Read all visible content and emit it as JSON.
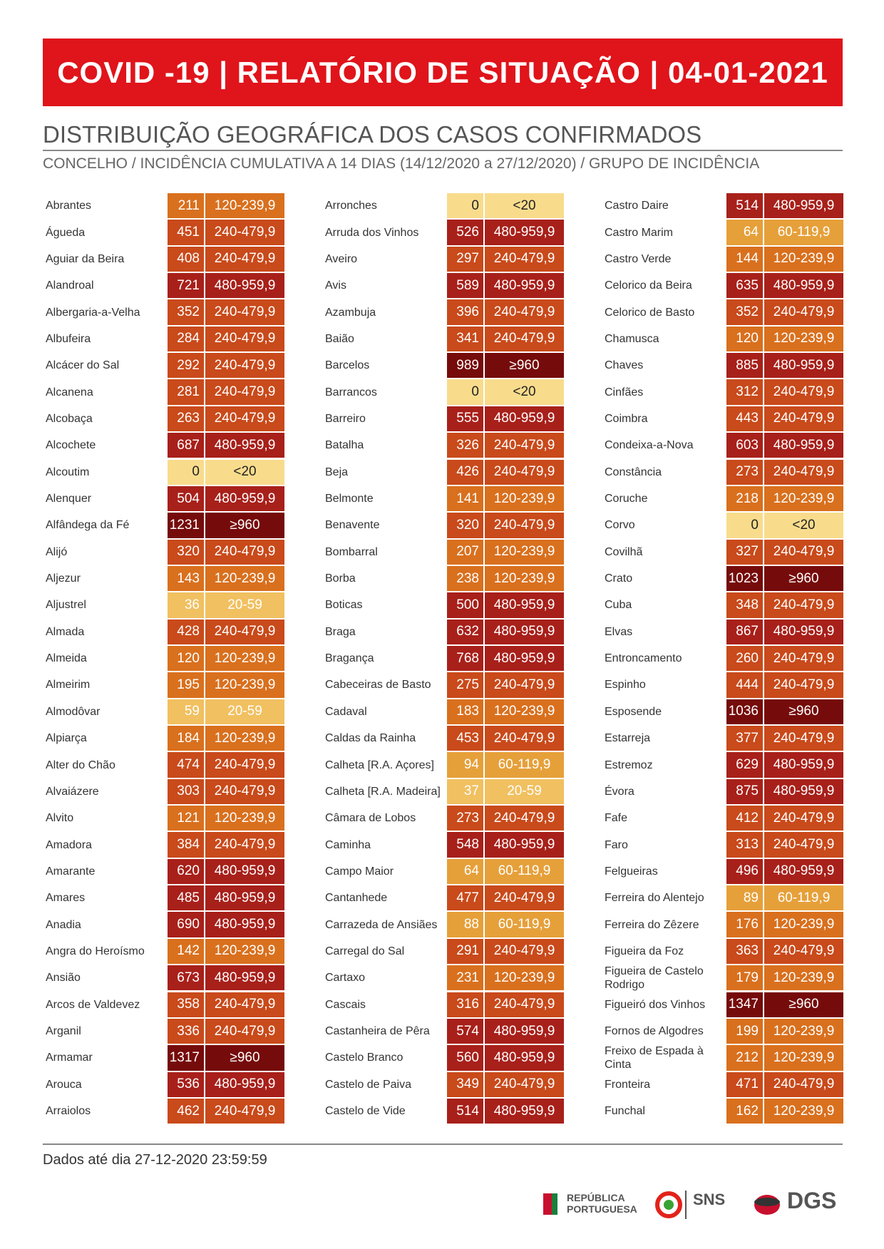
{
  "header": {
    "title": "COVID -19 | RELATÓRIO DE SITUAÇÃO | 04-01-2021"
  },
  "section": {
    "title": "DISTRIBUIÇÃO GEOGRÁFICA DOS CASOS CONFIRMADOS",
    "subtitle": "CONCELHO / INCIDÊNCIA CUMULATIVA A 14 DIAS (14/12/2020 a 27/12/2020) / GRUPO DE INCIDÊNCIA"
  },
  "table": {
    "columns": [
      {
        "rows": [
          [
            "Abrantes",
            211,
            "120-239,9",
            "#d9701e"
          ],
          [
            "Águeda",
            451,
            "240-479,9",
            "#c94a1b"
          ],
          [
            "Aguiar da Beira",
            408,
            "240-479,9",
            "#c94a1b"
          ],
          [
            "Alandroal",
            721,
            "480-959,9",
            "#a8201a"
          ],
          [
            "Albergaria-a-Velha",
            352,
            "240-479,9",
            "#c94a1b"
          ],
          [
            "Albufeira",
            284,
            "240-479,9",
            "#c94a1b"
          ],
          [
            "Alcácer do Sal",
            292,
            "240-479,9",
            "#c94a1b"
          ],
          [
            "Alcanena",
            281,
            "240-479,9",
            "#c94a1b"
          ],
          [
            "Alcobaça",
            263,
            "240-479,9",
            "#c94a1b"
          ],
          [
            "Alcochete",
            687,
            "480-959,9",
            "#a8201a"
          ],
          [
            "Alcoutim",
            0,
            "<20",
            "#f8dc8c"
          ],
          [
            "Alenquer",
            504,
            "480-959,9",
            "#a8201a"
          ],
          [
            "Alfândega da Fé",
            1231,
            "≥960",
            "#760b0b"
          ],
          [
            "Alijó",
            320,
            "240-479,9",
            "#c94a1b"
          ],
          [
            "Aljezur",
            143,
            "120-239,9",
            "#d9701e"
          ],
          [
            "Aljustrel",
            36,
            "20-59",
            "#f1c060"
          ],
          [
            "Almada",
            428,
            "240-479,9",
            "#c94a1b"
          ],
          [
            "Almeida",
            120,
            "120-239,9",
            "#d9701e"
          ],
          [
            "Almeirim",
            195,
            "120-239,9",
            "#d9701e"
          ],
          [
            "Almodôvar",
            59,
            "20-59",
            "#f1c060"
          ],
          [
            "Alpiarça",
            184,
            "120-239,9",
            "#d9701e"
          ],
          [
            "Alter do Chão",
            474,
            "240-479,9",
            "#c94a1b"
          ],
          [
            "Alvaiázere",
            303,
            "240-479,9",
            "#c94a1b"
          ],
          [
            "Alvito",
            121,
            "120-239,9",
            "#d9701e"
          ],
          [
            "Amadora",
            384,
            "240-479,9",
            "#c94a1b"
          ],
          [
            "Amarante",
            620,
            "480-959,9",
            "#a8201a"
          ],
          [
            "Amares",
            485,
            "480-959,9",
            "#a8201a"
          ],
          [
            "Anadia",
            690,
            "480-959,9",
            "#a8201a"
          ],
          [
            "Angra do Heroísmo",
            142,
            "120-239,9",
            "#d9701e"
          ],
          [
            "Ansião",
            673,
            "480-959,9",
            "#a8201a"
          ],
          [
            "Arcos de Valdevez",
            358,
            "240-479,9",
            "#c94a1b"
          ],
          [
            "Arganil",
            336,
            "240-479,9",
            "#c94a1b"
          ],
          [
            "Armamar",
            1317,
            "≥960",
            "#760b0b"
          ],
          [
            "Arouca",
            536,
            "480-959,9",
            "#a8201a"
          ],
          [
            "Arraiolos",
            462,
            "240-479,9",
            "#c94a1b"
          ]
        ]
      },
      {
        "rows": [
          [
            "Arronches",
            0,
            "<20",
            "#f8dc8c"
          ],
          [
            "Arruda dos Vinhos",
            526,
            "480-959,9",
            "#a8201a"
          ],
          [
            "Aveiro",
            297,
            "240-479,9",
            "#c94a1b"
          ],
          [
            "Avis",
            589,
            "480-959,9",
            "#a8201a"
          ],
          [
            "Azambuja",
            396,
            "240-479,9",
            "#c94a1b"
          ],
          [
            "Baião",
            341,
            "240-479,9",
            "#c94a1b"
          ],
          [
            "Barcelos",
            989,
            "≥960",
            "#760b0b"
          ],
          [
            "Barrancos",
            0,
            "<20",
            "#f8dc8c"
          ],
          [
            "Barreiro",
            555,
            "480-959,9",
            "#a8201a"
          ],
          [
            "Batalha",
            326,
            "240-479,9",
            "#c94a1b"
          ],
          [
            "Beja",
            426,
            "240-479,9",
            "#c94a1b"
          ],
          [
            "Belmonte",
            141,
            "120-239,9",
            "#d9701e"
          ],
          [
            "Benavente",
            320,
            "240-479,9",
            "#c94a1b"
          ],
          [
            "Bombarral",
            207,
            "120-239,9",
            "#d9701e"
          ],
          [
            "Borba",
            238,
            "120-239,9",
            "#d9701e"
          ],
          [
            "Boticas",
            500,
            "480-959,9",
            "#a8201a"
          ],
          [
            "Braga",
            632,
            "480-959,9",
            "#a8201a"
          ],
          [
            "Bragança",
            768,
            "480-959,9",
            "#a8201a"
          ],
          [
            "Cabeceiras de Basto",
            275,
            "240-479,9",
            "#c94a1b"
          ],
          [
            "Cadaval",
            183,
            "120-239,9",
            "#d9701e"
          ],
          [
            "Caldas da Rainha",
            453,
            "240-479,9",
            "#c94a1b"
          ],
          [
            "Calheta [R.A. Açores]",
            94,
            "60-119,9",
            "#e6a03a"
          ],
          [
            "Calheta [R.A. Madeira]",
            37,
            "20-59",
            "#f1c060"
          ],
          [
            "Câmara de Lobos",
            273,
            "240-479,9",
            "#c94a1b"
          ],
          [
            "Caminha",
            548,
            "480-959,9",
            "#a8201a"
          ],
          [
            "Campo Maior",
            64,
            "60-119,9",
            "#e6a03a"
          ],
          [
            "Cantanhede",
            477,
            "240-479,9",
            "#c94a1b"
          ],
          [
            "Carrazeda de Ansiães",
            88,
            "60-119,9",
            "#e6a03a"
          ],
          [
            "Carregal do Sal",
            291,
            "240-479,9",
            "#c94a1b"
          ],
          [
            "Cartaxo",
            231,
            "120-239,9",
            "#d9701e"
          ],
          [
            "Cascais",
            316,
            "240-479,9",
            "#c94a1b"
          ],
          [
            "Castanheira de Pêra",
            574,
            "480-959,9",
            "#a8201a"
          ],
          [
            "Castelo Branco",
            560,
            "480-959,9",
            "#a8201a"
          ],
          [
            "Castelo de Paiva",
            349,
            "240-479,9",
            "#c94a1b"
          ],
          [
            "Castelo de Vide",
            514,
            "480-959,9",
            "#a8201a"
          ]
        ]
      },
      {
        "rows": [
          [
            "Castro Daire",
            514,
            "480-959,9",
            "#a8201a"
          ],
          [
            "Castro Marim",
            64,
            "60-119,9",
            "#e6a03a"
          ],
          [
            "Castro Verde",
            144,
            "120-239,9",
            "#d9701e"
          ],
          [
            "Celorico da Beira",
            635,
            "480-959,9",
            "#a8201a"
          ],
          [
            "Celorico de Basto",
            352,
            "240-479,9",
            "#c94a1b"
          ],
          [
            "Chamusca",
            120,
            "120-239,9",
            "#d9701e"
          ],
          [
            "Chaves",
            885,
            "480-959,9",
            "#a8201a"
          ],
          [
            "Cinfães",
            312,
            "240-479,9",
            "#c94a1b"
          ],
          [
            "Coimbra",
            443,
            "240-479,9",
            "#c94a1b"
          ],
          [
            "Condeixa-a-Nova",
            603,
            "480-959,9",
            "#a8201a"
          ],
          [
            "Constância",
            273,
            "240-479,9",
            "#c94a1b"
          ],
          [
            "Coruche",
            218,
            "120-239,9",
            "#d9701e"
          ],
          [
            "Corvo",
            0,
            "<20",
            "#f8dc8c"
          ],
          [
            "Covilhã",
            327,
            "240-479,9",
            "#c94a1b"
          ],
          [
            "Crato",
            1023,
            "≥960",
            "#760b0b"
          ],
          [
            "Cuba",
            348,
            "240-479,9",
            "#c94a1b"
          ],
          [
            "Elvas",
            867,
            "480-959,9",
            "#a8201a"
          ],
          [
            "Entroncamento",
            260,
            "240-479,9",
            "#c94a1b"
          ],
          [
            "Espinho",
            444,
            "240-479,9",
            "#c94a1b"
          ],
          [
            "Esposende",
            1036,
            "≥960",
            "#760b0b"
          ],
          [
            "Estarreja",
            377,
            "240-479,9",
            "#c94a1b"
          ],
          [
            "Estremoz",
            629,
            "480-959,9",
            "#a8201a"
          ],
          [
            "Évora",
            875,
            "480-959,9",
            "#a8201a"
          ],
          [
            "Fafe",
            412,
            "240-479,9",
            "#c94a1b"
          ],
          [
            "Faro",
            313,
            "240-479,9",
            "#c94a1b"
          ],
          [
            "Felgueiras",
            496,
            "480-959,9",
            "#a8201a"
          ],
          [
            "Ferreira do Alentejo",
            89,
            "60-119,9",
            "#e6a03a"
          ],
          [
            "Ferreira do Zêzere",
            176,
            "120-239,9",
            "#d9701e"
          ],
          [
            "Figueira da Foz",
            363,
            "240-479,9",
            "#c94a1b"
          ],
          [
            "Figueira de Castelo Rodrigo",
            179,
            "120-239,9",
            "#d9701e"
          ],
          [
            "Figueiró dos Vinhos",
            1347,
            "≥960",
            "#760b0b"
          ],
          [
            "Fornos de Algodres",
            199,
            "120-239,9",
            "#d9701e"
          ],
          [
            "Freixo de Espada à Cinta",
            212,
            "120-239,9",
            "#d9701e"
          ],
          [
            "Fronteira",
            471,
            "240-479,9",
            "#c94a1b"
          ],
          [
            "Funchal",
            162,
            "120-239,9",
            "#d9701e"
          ]
        ]
      }
    ]
  },
  "footer": {
    "note": "Dados até dia 27-12-2020 23:59:59",
    "logo_republica": "REPÚBLICA PORTUGUESA",
    "logo_sns": "SNS",
    "logo_dgs": "DGS"
  }
}
